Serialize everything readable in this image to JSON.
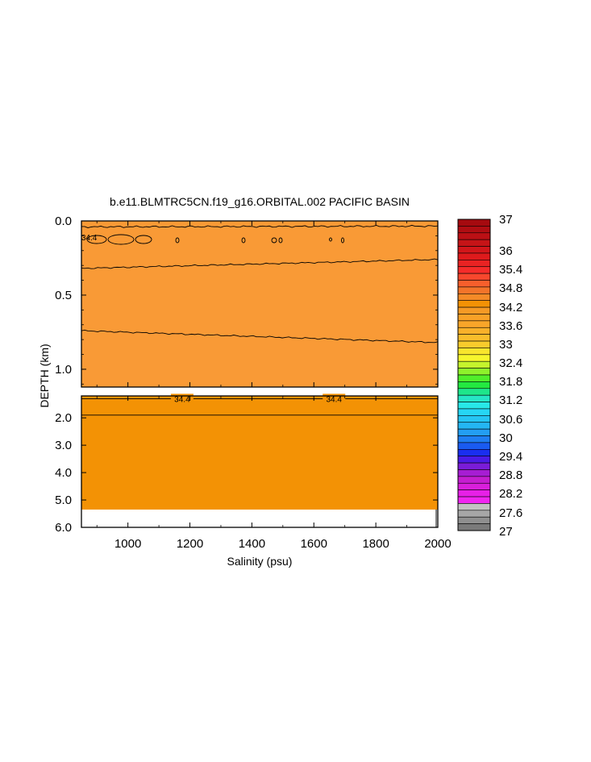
{
  "chart_data": {
    "type": "heatmap",
    "title": "b.e11.BLMTRC5CN.f19_g16.ORBITAL.002 PACIFIC BASIN",
    "xlabel": "Salinity (psu)",
    "ylabel": "DEPTH (km)",
    "xlim": [
      850,
      2000
    ],
    "x_ticks": [
      1000,
      1200,
      1400,
      1600,
      1800,
      2000
    ],
    "upper_panel": {
      "ylim": [
        0.0,
        1.12
      ],
      "y_ticks": [
        "0.0",
        "0.5",
        "1.0"
      ],
      "y_tick_values": [
        0.0,
        0.5,
        1.0
      ],
      "fill_color": "#f99a36",
      "contours": [
        {
          "name": "near-surface",
          "depth_left": 0.04,
          "depth_right": 0.035
        },
        {
          "name": "upper",
          "depth_left": 0.32,
          "depth_right": 0.26
        },
        {
          "name": "lower",
          "depth_left": 0.74,
          "depth_right": 0.82
        }
      ],
      "contour_labels": [
        {
          "text": "34.4",
          "x": 875,
          "depth": 0.11
        }
      ]
    },
    "lower_panel": {
      "ylim": [
        1.2,
        6.0
      ],
      "y_ticks": [
        "2.0",
        "3.0",
        "4.0",
        "5.0",
        "6.0"
      ],
      "y_tick_values": [
        2.0,
        3.0,
        4.0,
        5.0,
        6.0
      ],
      "fill_color": "#f39205",
      "bottom_depth": 5.35,
      "contours": [
        {
          "name": "shallow",
          "depth": 1.3
        },
        {
          "name": "deep",
          "depth": 1.9
        }
      ],
      "contour_labels": [
        {
          "text": "34.4",
          "x": 1175,
          "depth": 1.3
        },
        {
          "text": "34.4",
          "x": 1665,
          "depth": 1.3
        }
      ]
    },
    "colorbar": {
      "labels": [
        "37",
        "36",
        "35.4",
        "34.8",
        "34.2",
        "33.6",
        "33",
        "32.4",
        "31.8",
        "31.2",
        "30.6",
        "30",
        "29.4",
        "28.8",
        "28.2",
        "27.6",
        "27"
      ],
      "colors": [
        "#a50a0f",
        "#b00d12",
        "#bb1015",
        "#c51417",
        "#d2161a",
        "#de1a1c",
        "#e92323",
        "#f62c2a",
        "#f7472d",
        "#f75f2c",
        "#f3742a",
        "#f48a27",
        "#f39205",
        "#f59a25",
        "#f8a127",
        "#f9a629",
        "#f9b12a",
        "#f9bd2b",
        "#f9cb2c",
        "#f9e52d",
        "#f7f62d",
        "#c5f42c",
        "#8ef22b",
        "#50ef2a",
        "#23e840",
        "#1ee68b",
        "#26e6c6",
        "#28e8e8",
        "#26d6f4",
        "#25c5f3",
        "#24b6f3",
        "#239ef3",
        "#1f7ef2",
        "#1a5bf1",
        "#1a2ff0",
        "#4a1be7",
        "#7a1cd8",
        "#a61dd3",
        "#c51ed0",
        "#d91fdc",
        "#e620e6",
        "#f025f0",
        "#c2c2c2",
        "#a6a6a6",
        "#8f8f8f",
        "#7a7a7a"
      ]
    }
  }
}
